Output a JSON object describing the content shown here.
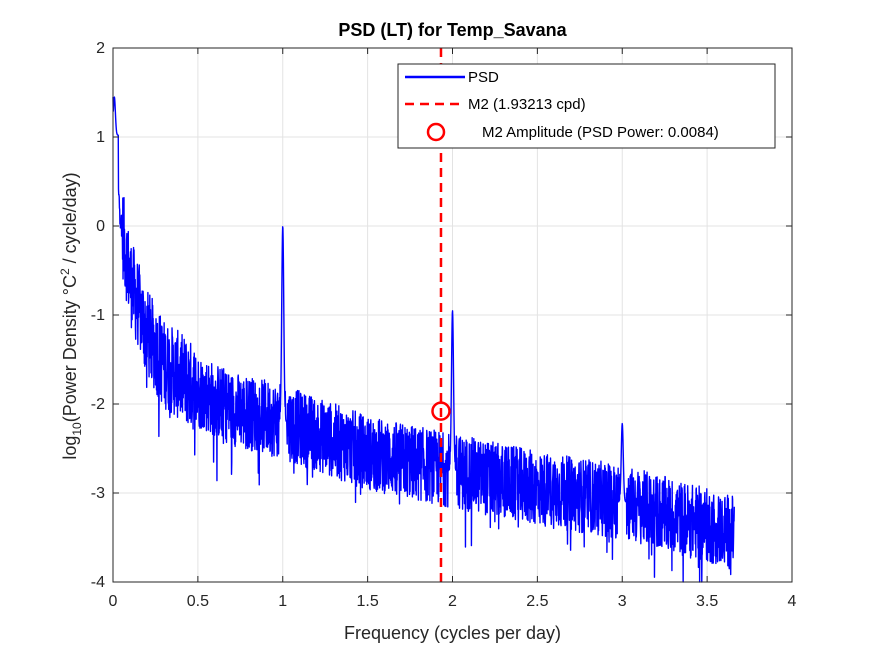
{
  "chart_data": {
    "type": "line",
    "title": "PSD (LT) for Temp_Savana",
    "xlabel": "Frequency (cycles per day)",
    "ylabel": {
      "prefix": "log",
      "sub": "10",
      "mid": "(Power Density °C",
      "sup": "2",
      "suffix": " / cycle/day)"
    },
    "xlim": [
      0,
      4
    ],
    "ylim": [
      -4,
      2
    ],
    "xticks": [
      "0",
      "0.5",
      "1",
      "1.5",
      "2",
      "2.5",
      "3",
      "3.5",
      "4"
    ],
    "yticks": [
      "2",
      "1",
      "0",
      "-1",
      "-2",
      "-3",
      "-4"
    ],
    "grid": true,
    "legend_position": "top-right",
    "series": [
      {
        "name": "PSD",
        "color": "#0000ff",
        "x_max": 3.66,
        "baseline": [
          [
            0.0,
            1.3
          ],
          [
            0.02,
            0.6
          ],
          [
            0.05,
            0.0
          ],
          [
            0.1,
            -0.6
          ],
          [
            0.2,
            -1.2
          ],
          [
            0.3,
            -1.55
          ],
          [
            0.5,
            -1.85
          ],
          [
            0.7,
            -2.05
          ],
          [
            1.0,
            -2.2
          ],
          [
            1.5,
            -2.55
          ],
          [
            2.0,
            -2.75
          ],
          [
            2.5,
            -2.95
          ],
          [
            3.0,
            -3.1
          ],
          [
            3.66,
            -3.45
          ]
        ],
        "peaks": [
          {
            "x": 0.008,
            "y": 1.45
          },
          {
            "x": 1.0,
            "y": 0.0
          },
          {
            "x": 2.0,
            "y": -0.95
          },
          {
            "x": 3.0,
            "y": -2.22
          }
        ]
      }
    ],
    "reference_line": {
      "name": "M2 (1.93213 cpd)",
      "x": 1.93213,
      "color": "#ff0000"
    },
    "marker": {
      "name": "M2 Amplitude (PSD Power: 0.0084)",
      "x": 1.93213,
      "y": -2.08,
      "color": "#ff0000"
    },
    "legend": [
      "PSD",
      "M2 (1.93213 cpd)",
      "M2 Amplitude (PSD Power: 0.0084)"
    ]
  }
}
